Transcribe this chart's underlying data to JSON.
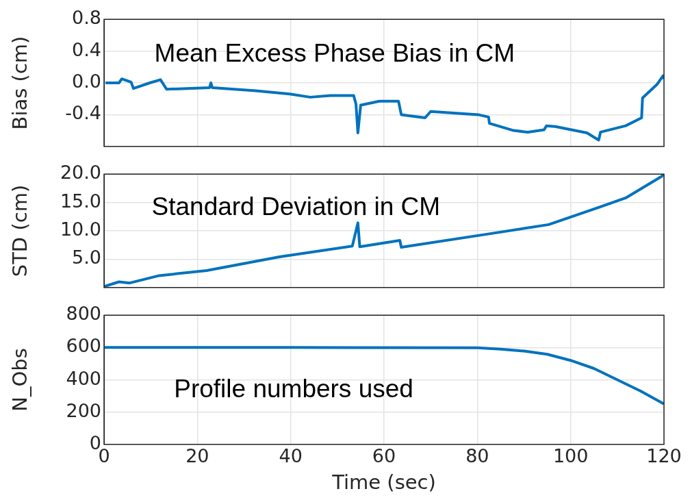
{
  "chart_data": [
    {
      "type": "line",
      "ylabel": "Bias (cm)",
      "annotations": [
        "Mean Excess Phase Bias in CM"
      ],
      "xlim": [
        0,
        120
      ],
      "xticks": [
        0,
        20,
        40,
        60,
        80,
        100,
        120
      ],
      "ylim": [
        -0.8,
        0.8
      ],
      "yticks": [
        {
          "value": -0.8,
          "label": null
        },
        -0.4,
        {
          "value": 0,
          "label": "0.0"
        },
        0.4,
        0.8
      ],
      "tick_labels": "y",
      "grid": true,
      "legend": false,
      "marker": "none",
      "line_style": "solid",
      "series": [
        {
          "color": "#0072bd",
          "x": [
            0.3,
            3.2,
            3.8,
            5.8,
            6.3,
            9.8,
            12.1,
            13.4,
            22.6,
            22.9,
            23.2,
            32.5,
            39.8,
            44.2,
            48.5,
            53.5,
            54,
            54.4,
            55,
            59,
            63.1,
            63.7,
            68.8,
            70,
            80.2,
            82.4,
            82.6,
            87.8,
            90.8,
            94.3,
            94.8,
            96.7,
            103.5,
            106,
            106.4,
            111.8,
            115.2,
            115.4,
            118.5,
            119.8,
            120
          ],
          "values": [
            0.0,
            0.0,
            0.05,
            0.01,
            -0.07,
            0.0,
            0.04,
            -0.08,
            -0.06,
            0.0,
            -0.06,
            -0.1,
            -0.14,
            -0.18,
            -0.16,
            -0.16,
            -0.27,
            -0.63,
            -0.28,
            -0.23,
            -0.23,
            -0.4,
            -0.44,
            -0.36,
            -0.4,
            -0.43,
            -0.51,
            -0.6,
            -0.62,
            -0.59,
            -0.54,
            -0.55,
            -0.63,
            -0.72,
            -0.62,
            -0.54,
            -0.44,
            -0.19,
            -0.02,
            0.09,
            0.05
          ]
        }
      ]
    },
    {
      "type": "line",
      "ylabel": "STD (cm)",
      "annotations": [
        "Standard Deviation in CM"
      ],
      "xlim": [
        0,
        120
      ],
      "xticks": [
        0,
        20,
        40,
        60,
        80,
        100,
        120
      ],
      "ylim": [
        0,
        20
      ],
      "yticks": [
        {
          "value": 0,
          "label": null
        },
        {
          "value": 5,
          "label": "5.0"
        },
        {
          "value": 10,
          "label": "10.0"
        },
        {
          "value": 15,
          "label": "15.0"
        },
        {
          "value": 20,
          "label": "20.0"
        }
      ],
      "tick_labels": "y",
      "grid": true,
      "legend": false,
      "marker": "none",
      "line_style": "solid",
      "series": [
        {
          "color": "#0072bd",
          "x": [
            0.1,
            3.2,
            5.5,
            11.8,
            22,
            37.6,
            53.2,
            54.4,
            54.8,
            63.4,
            63.7,
            82.8,
            95.3,
            106.3,
            111.8,
            119.5,
            120
          ],
          "values": [
            0.2,
            1.0,
            0.8,
            2.1,
            3.0,
            5.4,
            7.3,
            11.4,
            7.2,
            8.3,
            7.1,
            9.5,
            11.1,
            14.2,
            15.8,
            19.6,
            20
          ]
        }
      ]
    },
    {
      "type": "line",
      "xlabel": "Time (sec)",
      "ylabel": "N_Obs",
      "annotations": [
        "Profile numbers used"
      ],
      "xlim": [
        0,
        120
      ],
      "xticks": [
        0,
        20,
        40,
        60,
        80,
        100,
        120
      ],
      "ylim": [
        0,
        800
      ],
      "yticks": [
        0,
        200,
        400,
        600,
        800
      ],
      "grid": true,
      "legend": false,
      "marker": "none",
      "line_style": "solid",
      "series": [
        {
          "color": "#0072bd",
          "x": [
            0,
            40,
            80,
            85,
            90,
            95,
            100,
            105,
            110,
            115,
            120
          ],
          "values": [
            600,
            600,
            598,
            590,
            578,
            558,
            520,
            470,
            400,
            330,
            250
          ]
        }
      ]
    }
  ]
}
